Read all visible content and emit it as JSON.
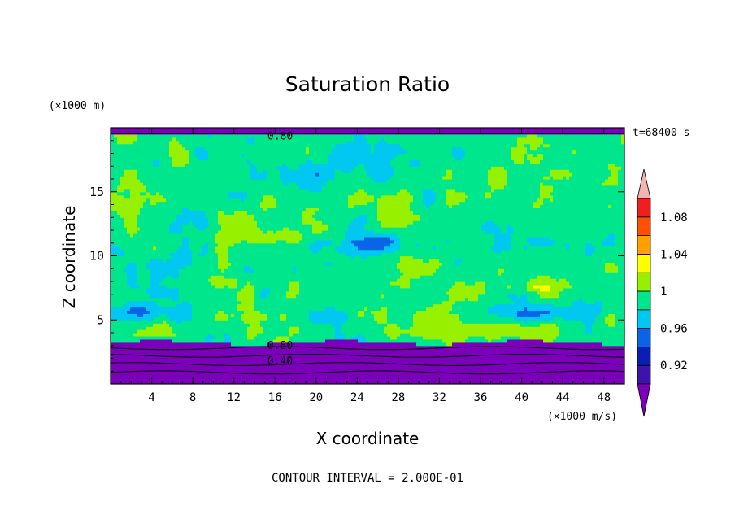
{
  "chart_data": {
    "type": "heatmap",
    "title": "Saturation Ratio",
    "xlabel": "X coordinate",
    "ylabel": "Z coordinate",
    "x_unit": "(×1000 m/s)",
    "y_unit": "(×1000 m)",
    "time_label": "t=68400 s",
    "footer": "CONTOUR INTERVAL = 2.000E-01",
    "xlim": [
      0,
      50
    ],
    "ylim": [
      0,
      20
    ],
    "x_ticks": [
      4,
      8,
      12,
      16,
      20,
      24,
      28,
      32,
      36,
      40,
      44,
      48
    ],
    "y_ticks": [
      5,
      10,
      15
    ],
    "contour_labels": [
      {
        "text": "0.80",
        "x": 16.5,
        "y": 19.4
      },
      {
        "text": "0.80",
        "x": 16.5,
        "y": 3.05
      },
      {
        "text": "0.40",
        "x": 16.5,
        "y": 1.85
      }
    ],
    "colorbar": {
      "bin_edges": [
        0.9,
        0.92,
        0.94,
        0.96,
        0.98,
        1.0,
        1.02,
        1.04,
        1.06,
        1.08,
        1.1
      ],
      "colors": [
        "#3c14aa",
        "#0a1eb4",
        "#0a64e6",
        "#00c8f0",
        "#00e68c",
        "#96f000",
        "#ffff00",
        "#ffa000",
        "#ff5000",
        "#f01e1e"
      ],
      "under_color": "#7a00ba",
      "over_color": "#f4b4b4",
      "tick_labels": [
        "0.92",
        "0.96",
        "1",
        "1.04",
        "1.08"
      ],
      "tick_values": [
        0.92,
        0.96,
        1.0,
        1.04,
        1.08
      ]
    }
  }
}
